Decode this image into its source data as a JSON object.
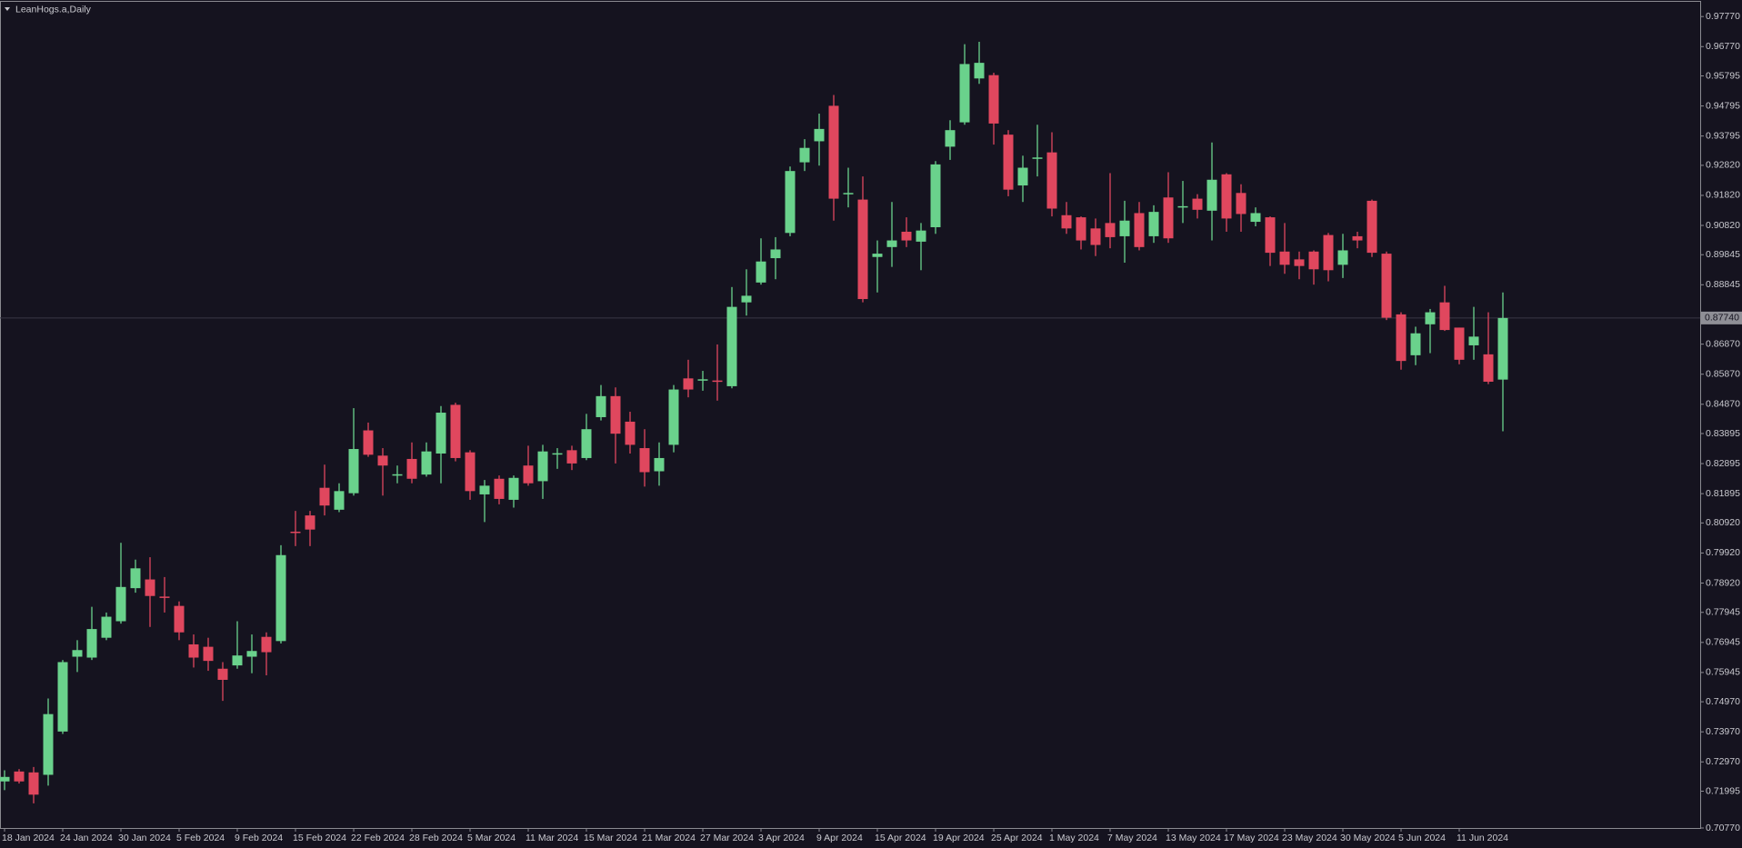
{
  "chart_data": {
    "type": "candlestick",
    "title": "LeanHogs.a,Daily",
    "categories": [
      "18 Jan 2024",
      null,
      null,
      null,
      "24 Jan 2024",
      null,
      null,
      null,
      "30 Jan 2024",
      null,
      null,
      null,
      "5 Feb 2024",
      null,
      null,
      null,
      "9 Feb 2024",
      null,
      null,
      null,
      "15 Feb 2024",
      null,
      null,
      null,
      "22 Feb 2024",
      null,
      null,
      null,
      "28 Feb 2024",
      null,
      null,
      null,
      "5 Mar 2024",
      null,
      null,
      null,
      "11 Mar 2024",
      null,
      null,
      null,
      "15 Mar 2024",
      null,
      null,
      null,
      "21 Mar 2024",
      null,
      null,
      null,
      "27 Mar 2024",
      null,
      null,
      null,
      "3 Apr 2024",
      null,
      null,
      null,
      "9 Apr 2024",
      null,
      null,
      null,
      "15 Apr 2024",
      null,
      null,
      null,
      "19 Apr 2024",
      null,
      null,
      null,
      "25 Apr 2024",
      null,
      null,
      null,
      "1 May 2024",
      null,
      null,
      null,
      "7 May 2024",
      null,
      null,
      null,
      "13 May 2024",
      null,
      null,
      null,
      "17 May 2024",
      null,
      null,
      null,
      "23 May 2024",
      null,
      null,
      null,
      "30 May 2024",
      null,
      null,
      null,
      "5 Jun 2024",
      null,
      null,
      null,
      "11 Jun 2024",
      null,
      null,
      null
    ],
    "open": [
      0.7232,
      0.7265,
      0.7262,
      0.7254,
      0.7398,
      0.7647,
      0.7644,
      0.771,
      0.7765,
      0.7875,
      0.7904,
      0.7847,
      0.7816,
      0.7688,
      0.768,
      0.7607,
      0.7618,
      0.7647,
      0.7713,
      0.7699,
      0.8063,
      0.8117,
      0.8209,
      0.8136,
      0.8191,
      0.84,
      0.8316,
      0.8252,
      0.8305,
      0.8253,
      0.8323,
      0.8485,
      0.8327,
      0.8187,
      0.8239,
      0.8169,
      0.8283,
      0.8231,
      0.8322,
      0.8334,
      0.8308,
      0.8444,
      0.8514,
      0.8429,
      0.8341,
      0.8264,
      0.8352,
      0.8573,
      0.8568,
      0.8566,
      0.8547,
      0.8826,
      0.8892,
      0.8973,
      0.9057,
      0.9292,
      0.9362,
      0.948,
      0.9188,
      0.9168,
      0.8977,
      0.901,
      0.9061,
      0.9028,
      0.9076,
      0.9344,
      0.9425,
      0.9571,
      0.9582,
      0.9384,
      0.9215,
      0.9306,
      0.9325,
      0.9116,
      0.9109,
      0.9072,
      0.909,
      0.9046,
      0.9123,
      0.9046,
      0.9175,
      0.9144,
      0.9171,
      0.9131,
      0.9252,
      0.919,
      0.9094,
      0.9109,
      0.8995,
      0.8969,
      0.8995,
      0.905,
      0.8951,
      0.9046,
      0.9164,
      0.8988,
      0.8786,
      0.865,
      0.8753,
      0.8826,
      0.8742,
      0.8683,
      0.8653,
      0.8569
    ],
    "high": [
      0.7269,
      0.7273,
      0.728,
      0.7508,
      0.7636,
      0.7702,
      0.7813,
      0.7794,
      0.8026,
      0.797,
      0.7978,
      0.7912,
      0.7831,
      0.7721,
      0.771,
      0.7629,
      0.7765,
      0.7721,
      0.7728,
      0.8018,
      0.8132,
      0.8132,
      0.8286,
      0.8224,
      0.8474,
      0.8426,
      0.8341,
      0.8283,
      0.836,
      0.836,
      0.8481,
      0.8492,
      0.8334,
      0.8235,
      0.825,
      0.825,
      0.8349,
      0.8352,
      0.8341,
      0.8349,
      0.8455,
      0.8551,
      0.8543,
      0.8462,
      0.8404,
      0.836,
      0.8551,
      0.8635,
      0.8598,
      0.8686,
      0.8877,
      0.8936,
      0.9039,
      0.9043,
      0.9278,
      0.9369,
      0.9454,
      0.9516,
      0.9274,
      0.9245,
      0.9032,
      0.916,
      0.9109,
      0.909,
      0.9296,
      0.9432,
      0.9685,
      0.9693,
      0.959,
      0.9399,
      0.9314,
      0.9417,
      0.9392,
      0.916,
      0.9112,
      0.9105,
      0.9256,
      0.9164,
      0.916,
      0.9149,
      0.9259,
      0.923,
      0.9186,
      0.9358,
      0.9256,
      0.9219,
      0.9142,
      0.9112,
      0.909,
      0.8995,
      0.8999,
      0.9057,
      0.9054,
      0.9061,
      0.9168,
      0.8995,
      0.8793,
      0.8745,
      0.8804,
      0.8881,
      0.8742,
      0.8811,
      0.8793,
      0.8859
    ],
    "low": [
      0.7203,
      0.7225,
      0.7159,
      0.7218,
      0.739,
      0.7596,
      0.7636,
      0.7702,
      0.7757,
      0.786,
      0.7746,
      0.7794,
      0.7702,
      0.7611,
      0.76,
      0.75,
      0.7607,
      0.7592,
      0.7585,
      0.7691,
      0.8015,
      0.8015,
      0.8117,
      0.8128,
      0.8183,
      0.8312,
      0.8183,
      0.8224,
      0.8224,
      0.8246,
      0.8224,
      0.8297,
      0.8169,
      0.8095,
      0.8154,
      0.8143,
      0.8216,
      0.8172,
      0.8272,
      0.8268,
      0.8301,
      0.8433,
      0.829,
      0.8323,
      0.8213,
      0.8216,
      0.8327,
      0.851,
      0.8532,
      0.8499,
      0.854,
      0.8782,
      0.8885,
      0.8903,
      0.9046,
      0.9263,
      0.9281,
      0.9098,
      0.9142,
      0.8826,
      0.8859,
      0.8944,
      0.901,
      0.8933,
      0.9054,
      0.93,
      0.9417,
      0.9553,
      0.9351,
      0.9179,
      0.916,
      0.9245,
      0.9112,
      0.9054,
      0.9002,
      0.898,
      0.9006,
      0.8958,
      0.8999,
      0.9024,
      0.9024,
      0.909,
      0.9105,
      0.9032,
      0.9061,
      0.9061,
      0.9079,
      0.8947,
      0.8921,
      0.8903,
      0.8885,
      0.8896,
      0.8907,
      0.9006,
      0.8977,
      0.8767,
      0.8602,
      0.8617,
      0.8657,
      0.8731,
      0.862,
      0.8635,
      0.8554,
      0.8397
    ],
    "close": [
      0.7247,
      0.7232,
      0.7188,
      0.7456,
      0.7629,
      0.7669,
      0.7739,
      0.778,
      0.7879,
      0.7941,
      0.7849,
      0.7845,
      0.7728,
      0.7644,
      0.7633,
      0.757,
      0.7651,
      0.7666,
      0.7662,
      0.7985,
      0.8061,
      0.807,
      0.815,
      0.8198,
      0.8338,
      0.8319,
      0.8283,
      0.8254,
      0.8239,
      0.833,
      0.8459,
      0.8308,
      0.8198,
      0.8216,
      0.8172,
      0.8242,
      0.8224,
      0.833,
      0.8324,
      0.829,
      0.8404,
      0.8514,
      0.8389,
      0.8352,
      0.8261,
      0.8308,
      0.8536,
      0.8536,
      0.857,
      0.8564,
      0.8811,
      0.8848,
      0.8962,
      0.9002,
      0.9263,
      0.934,
      0.9403,
      0.9171,
      0.919,
      0.8837,
      0.8988,
      0.9032,
      0.9032,
      0.9065,
      0.9285,
      0.9399,
      0.9619,
      0.9623,
      0.9421,
      0.9201,
      0.9274,
      0.9308,
      0.9138,
      0.9072,
      0.9032,
      0.9017,
      0.9043,
      0.9098,
      0.901,
      0.9127,
      0.9039,
      0.9146,
      0.9134,
      0.9234,
      0.9105,
      0.912,
      0.9123,
      0.8991,
      0.8951,
      0.8947,
      0.8936,
      0.8933,
      0.8999,
      0.9032,
      0.8991,
      0.8775,
      0.8631,
      0.8723,
      0.8793,
      0.8734,
      0.8635,
      0.8712,
      0.8562,
      0.8774
    ],
    "up_color": "#6ad28c",
    "down_color": "#e0475e",
    "ylim": [
      0.7077,
      0.9826
    ],
    "yticks": [
      {
        "value": 0.9777,
        "label": "0.97770"
      },
      {
        "value": 0.9677,
        "label": "0.96770"
      },
      {
        "value": 0.95795,
        "label": "0.95795"
      },
      {
        "value": 0.94795,
        "label": "0.94795"
      },
      {
        "value": 0.93795,
        "label": "0.93795"
      },
      {
        "value": 0.9282,
        "label": "0.92820"
      },
      {
        "value": 0.9182,
        "label": "0.91820"
      },
      {
        "value": 0.9082,
        "label": "0.90820"
      },
      {
        "value": 0.89845,
        "label": "0.89845"
      },
      {
        "value": 0.88845,
        "label": "0.88845"
      },
      {
        "value": 0.8687,
        "label": "0.86870"
      },
      {
        "value": 0.8587,
        "label": "0.85870"
      },
      {
        "value": 0.8487,
        "label": "0.84870"
      },
      {
        "value": 0.83895,
        "label": "0.83895"
      },
      {
        "value": 0.82895,
        "label": "0.82895"
      },
      {
        "value": 0.81895,
        "label": "0.81895"
      },
      {
        "value": 0.8092,
        "label": "0.80920"
      },
      {
        "value": 0.7992,
        "label": "0.79920"
      },
      {
        "value": 0.7892,
        "label": "0.78920"
      },
      {
        "value": 0.77945,
        "label": "0.77945"
      },
      {
        "value": 0.76945,
        "label": "0.76945"
      },
      {
        "value": 0.75945,
        "label": "0.75945"
      },
      {
        "value": 0.7497,
        "label": "0.74970"
      },
      {
        "value": 0.7397,
        "label": "0.73970"
      },
      {
        "value": 0.7297,
        "label": "0.72970"
      },
      {
        "value": 0.71995,
        "label": "0.71995"
      },
      {
        "value": 0.7077,
        "label": "0.70770"
      }
    ],
    "current_price": {
      "value": 0.8774,
      "label": "0.87740"
    },
    "grid": false
  }
}
